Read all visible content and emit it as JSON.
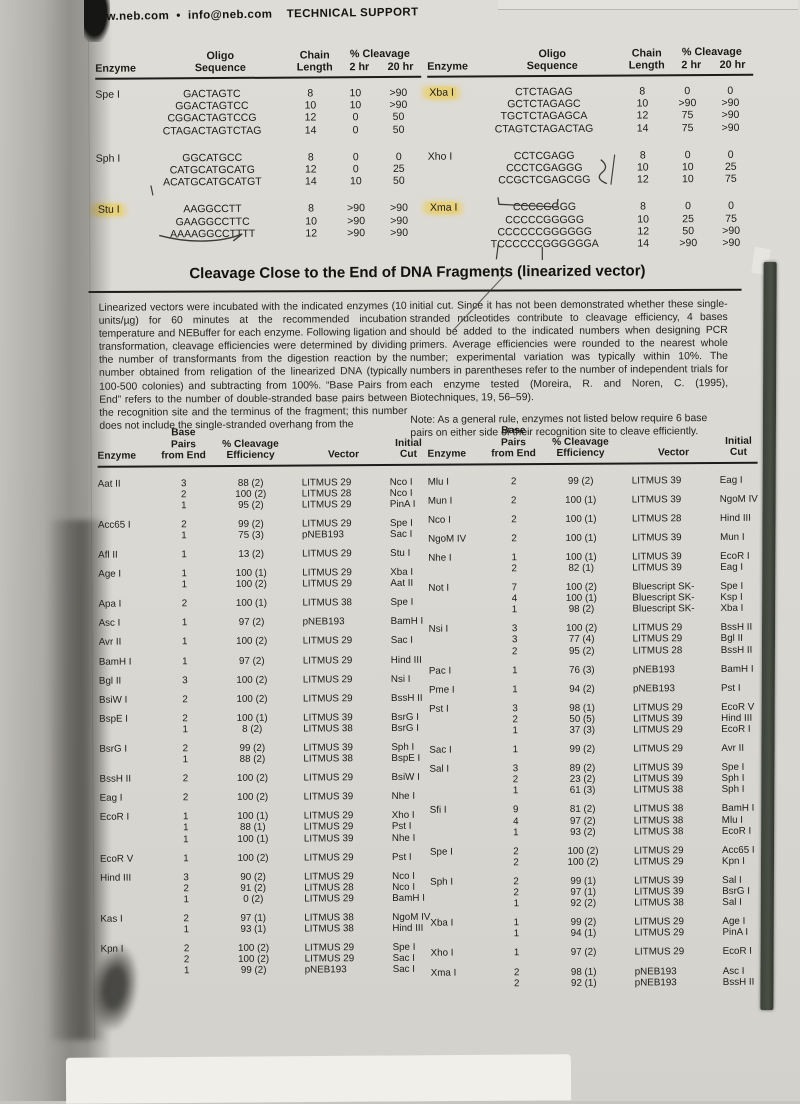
{
  "colors": {
    "highlight": "#e7d17c"
  },
  "header": {
    "text": "www.neb.com  •  info@neb.com    TECHNICAL SUPPORT"
  },
  "oligo_table": {
    "headers": {
      "enzyme": "Enzyme",
      "oligo_line1": "Oligo",
      "oligo_line2": "Sequence",
      "chain_line1": "Chain",
      "chain_line2": "Length",
      "cleavage": "% Cleavage",
      "t2": "2 hr",
      "t20": "20 hr"
    },
    "left_groups": [
      {
        "enzyme": "Spe I",
        "highlight": false,
        "rows": [
          [
            "GACTAGTC",
            "8",
            "10",
            ">90"
          ],
          [
            "GGACTAGTCC",
            "10",
            "10",
            ">90"
          ],
          [
            "CGGACTAGTCCG",
            "12",
            "0",
            "50"
          ],
          [
            "CTAGACTAGTCTAG",
            "14",
            "0",
            "50"
          ]
        ]
      },
      {
        "enzyme": "Sph I",
        "highlight": false,
        "rows": [
          [
            "GGCATGCC",
            "8",
            "0",
            "0"
          ],
          [
            "CATGCATGCATG",
            "12",
            "0",
            "25"
          ],
          [
            "ACATGCATGCATGT",
            "14",
            "10",
            "50"
          ]
        ]
      },
      {
        "enzyme": "Stu I",
        "highlight": true,
        "rows": [
          [
            "AAGGCCTT",
            "8",
            ">90",
            ">90"
          ],
          [
            "GAAGGCCTTC",
            "10",
            ">90",
            ">90"
          ],
          [
            "AAAAGGCCTTTT",
            "12",
            ">90",
            ">90"
          ]
        ]
      }
    ],
    "right_groups": [
      {
        "enzyme": "Xba I",
        "highlight": true,
        "rows": [
          [
            "CTCTAGAG",
            "8",
            "0",
            "0"
          ],
          [
            "GCTCTAGAGC",
            "10",
            ">90",
            ">90"
          ],
          [
            "TGCTCTAGAGCA",
            "12",
            "75",
            ">90"
          ],
          [
            "CTAGTCTAGACTAG",
            "14",
            "75",
            ">90"
          ]
        ]
      },
      {
        "enzyme": "Xho I",
        "highlight": false,
        "rows": [
          [
            "CCTCGAGG",
            "8",
            "0",
            "0"
          ],
          [
            "CCCTCGAGGG",
            "10",
            "10",
            "25"
          ],
          [
            "CCGCTCGAGCGG",
            "12",
            "10",
            "75"
          ]
        ]
      },
      {
        "enzyme": "Xma I",
        "highlight": true,
        "rows": [
          [
            "CCCCGGGG",
            "8",
            "0",
            "0"
          ],
          [
            "CCCCCGGGGG",
            "10",
            "25",
            "75"
          ],
          [
            "CCCCCCGGGGGG",
            "12",
            "50",
            ">90"
          ],
          [
            "TCCCCCCGGGGGGA",
            "14",
            ">90",
            ">90"
          ]
        ]
      }
    ]
  },
  "section": {
    "title": "Cleavage Close to the End of DNA Fragments (linearized vector)",
    "para_left": "Linearized vectors were incubated with the indicated enzymes (10 units/µg) for 60 minutes at the recommended incubation temperature and NEBuffer for each enzyme. Following ligation and transformation, cleavage efficiencies were determined by dividing the number of transformants from the digestion reaction by the number obtained from religation of the linearized DNA (typically 100-500 colonies) and subtracting from 100%. “Base Pairs from End” refers to the number of double-stranded base pairs between the recognition site and the terminus of the fragment; this number does not include the single-stranded overhang from the",
    "para_right": "initial cut. Since it has not been demonstrated whether these single-stranded nucleotides contribute to cleavage efficiency, 4 bases should be added to the indicated numbers when designing PCR primers. Average efficiencies were rounded to the nearest whole number; experimental variation was typically within 10%. The numbers in parentheses refer to the number of independent trials for each enzyme tested (Moreira, R. and Noren, C. (1995), Biotechniques, 19, 56–59).",
    "note": "Note: As a general rule, enzymes not listed below require 6 base pairs on either side of their recognition site to cleave efficiently."
  },
  "end_table": {
    "headers": {
      "enzyme": "Enzyme",
      "bp_line1": "Base Pairs",
      "bp_line2": "from End",
      "eff_line1": "% Cleavage",
      "eff_line2": "Efficiency",
      "vector": "Vector",
      "initial": "Initial Cut"
    },
    "left_groups": [
      {
        "enzyme": "Aat II",
        "rows": [
          [
            "3",
            "88 (2)",
            "LITMUS 29",
            "Nco I"
          ],
          [
            "2",
            "100 (2)",
            "LITMUS 28",
            "Nco I"
          ],
          [
            "1",
            "95 (2)",
            "LITMUS 29",
            "PinA I"
          ]
        ]
      },
      {
        "enzyme": "Acc65 I",
        "rows": [
          [
            "2",
            "99 (2)",
            "LITMUS 29",
            "Spe I"
          ],
          [
            "1",
            "75 (3)",
            "pNEB193",
            "Sac I"
          ]
        ]
      },
      {
        "enzyme": "Afl II",
        "rows": [
          [
            "1",
            "13 (2)",
            "LITMUS 29",
            "Stu I"
          ]
        ]
      },
      {
        "enzyme": "Age I",
        "rows": [
          [
            "1",
            "100 (1)",
            "LITMUS 29",
            "Xba I"
          ],
          [
            "1",
            "100 (2)",
            "LITMUS 29",
            "Aat II"
          ]
        ]
      },
      {
        "enzyme": "Apa I",
        "rows": [
          [
            "2",
            "100 (1)",
            "LITMUS 38",
            "Spe I"
          ]
        ]
      },
      {
        "enzyme": "Asc I",
        "rows": [
          [
            "1",
            "97 (2)",
            "pNEB193",
            "BamH I"
          ]
        ]
      },
      {
        "enzyme": "Avr II",
        "rows": [
          [
            "1",
            "100 (2)",
            "LITMUS 29",
            "Sac I"
          ]
        ]
      },
      {
        "enzyme": "BamH I",
        "rows": [
          [
            "1",
            "97 (2)",
            "LITMUS 29",
            "Hind III"
          ]
        ]
      },
      {
        "enzyme": "Bgl II",
        "rows": [
          [
            "3",
            "100 (2)",
            "LITMUS 29",
            "Nsi I"
          ]
        ]
      },
      {
        "enzyme": "BsiW I",
        "rows": [
          [
            "2",
            "100 (2)",
            "LITMUS 29",
            "BssH II"
          ]
        ]
      },
      {
        "enzyme": "BspE I",
        "rows": [
          [
            "2",
            "100 (1)",
            "LITMUS 39",
            "BsrG I"
          ],
          [
            "1",
            "8 (2)",
            "LITMUS 38",
            "BsrG I"
          ]
        ]
      },
      {
        "enzyme": "BsrG I",
        "rows": [
          [
            "2",
            "99 (2)",
            "LITMUS 39",
            "Sph I"
          ],
          [
            "1",
            "88 (2)",
            "LITMUS 38",
            "BspE I"
          ]
        ]
      },
      {
        "enzyme": "BssH II",
        "rows": [
          [
            "2",
            "100 (2)",
            "LITMUS 29",
            "BsiW I"
          ]
        ]
      },
      {
        "enzyme": "Eag I",
        "rows": [
          [
            "2",
            "100 (2)",
            "LITMUS 39",
            "Nhe I"
          ]
        ]
      },
      {
        "enzyme": "EcoR I",
        "rows": [
          [
            "1",
            "100 (1)",
            "LITMUS 29",
            "Xho I"
          ],
          [
            "1",
            "88 (1)",
            "LITMUS 29",
            "Pst I"
          ],
          [
            "1",
            "100 (1)",
            "LITMUS 39",
            "Nhe I"
          ]
        ]
      },
      {
        "enzyme": "EcoR V",
        "rows": [
          [
            "1",
            "100 (2)",
            "LITMUS 29",
            "Pst I"
          ]
        ]
      },
      {
        "enzyme": "Hind III",
        "rows": [
          [
            "3",
            "90 (2)",
            "LITMUS 29",
            "Nco I"
          ],
          [
            "2",
            "91 (2)",
            "LITMUS 28",
            "Nco I"
          ],
          [
            "1",
            "0 (2)",
            "LITMUS 29",
            "BamH I"
          ]
        ]
      },
      {
        "enzyme": "Kas I",
        "rows": [
          [
            "2",
            "97 (1)",
            "LITMUS 38",
            "NgoM IV"
          ],
          [
            "1",
            "93 (1)",
            "LITMUS 38",
            "Hind III"
          ]
        ]
      },
      {
        "enzyme": "Kpn I",
        "rows": [
          [
            "2",
            "100 (2)",
            "LITMUS 29",
            "Spe I"
          ],
          [
            "2",
            "100 (2)",
            "LITMUS 29",
            "Sac I"
          ],
          [
            "1",
            "99 (2)",
            "pNEB193",
            "Sac I"
          ]
        ]
      }
    ],
    "right_groups": [
      {
        "enzyme": "Mlu I",
        "rows": [
          [
            "2",
            "99 (2)",
            "LITMUS 39",
            "Eag I"
          ]
        ]
      },
      {
        "enzyme": "Mun I",
        "rows": [
          [
            "2",
            "100 (1)",
            "LITMUS 39",
            "NgoM IV"
          ]
        ]
      },
      {
        "enzyme": "Nco I",
        "rows": [
          [
            "2",
            "100 (1)",
            "LITMUS 28",
            "Hind III"
          ]
        ]
      },
      {
        "enzyme": "NgoM IV",
        "rows": [
          [
            "2",
            "100 (1)",
            "LITMUS 39",
            "Mun I"
          ]
        ]
      },
      {
        "enzyme": "Nhe I",
        "rows": [
          [
            "1",
            "100 (1)",
            "LITMUS 39",
            "EcoR I"
          ],
          [
            "2",
            "82 (1)",
            "LITMUS 39",
            "Eag I"
          ]
        ]
      },
      {
        "enzyme": "Not I",
        "rows": [
          [
            "7",
            "100 (2)",
            "Bluescript SK-",
            "Spe I"
          ],
          [
            "4",
            "100 (1)",
            "Bluescript SK-",
            "Ksp I"
          ],
          [
            "1",
            "98 (2)",
            "Bluescript SK-",
            "Xba I"
          ]
        ]
      },
      {
        "enzyme": "Nsi I",
        "rows": [
          [
            "3",
            "100 (2)",
            "LITMUS 29",
            "BssH II"
          ],
          [
            "3",
            "77 (4)",
            "LITMUS 29",
            "Bgl II"
          ],
          [
            "2",
            "95 (2)",
            "LITMUS 28",
            "BssH II"
          ]
        ]
      },
      {
        "enzyme": "Pac I",
        "rows": [
          [
            "1",
            "76 (3)",
            "pNEB193",
            "BamH I"
          ]
        ]
      },
      {
        "enzyme": "Pme I",
        "rows": [
          [
            "1",
            "94 (2)",
            "pNEB193",
            "Pst I"
          ]
        ]
      },
      {
        "enzyme": "Pst I",
        "rows": [
          [
            "3",
            "98 (1)",
            "LITMUS 29",
            "EcoR V"
          ],
          [
            "2",
            "50 (5)",
            "LITMUS 39",
            "Hind III"
          ],
          [
            "1",
            "37 (3)",
            "LITMUS 29",
            "EcoR I"
          ]
        ]
      },
      {
        "enzyme": "Sac I",
        "rows": [
          [
            "1",
            "99 (2)",
            "LITMUS 29",
            "Avr II"
          ]
        ]
      },
      {
        "enzyme": "Sal I",
        "rows": [
          [
            "3",
            "89 (2)",
            "LITMUS 39",
            "Spe I"
          ],
          [
            "2",
            "23 (2)",
            "LITMUS 39",
            "Sph I"
          ],
          [
            "1",
            "61 (3)",
            "LITMUS 38",
            "Sph I"
          ]
        ]
      },
      {
        "enzyme": "Sfi I",
        "rows": [
          [
            "9",
            "81 (2)",
            "LITMUS 38",
            "BamH I"
          ],
          [
            "4",
            "97 (2)",
            "LITMUS 38",
            "Mlu I"
          ],
          [
            "1",
            "93 (2)",
            "LITMUS 38",
            "EcoR I"
          ]
        ]
      },
      {
        "enzyme": "Spe I",
        "rows": [
          [
            "2",
            "100 (2)",
            "LITMUS 29",
            "Acc65 I"
          ],
          [
            "2",
            "100 (2)",
            "LITMUS 29",
            "Kpn I"
          ]
        ]
      },
      {
        "enzyme": "Sph I",
        "rows": [
          [
            "2",
            "99 (1)",
            "LITMUS 39",
            "Sal I"
          ],
          [
            "2",
            "97 (1)",
            "LITMUS 39",
            "BsrG I"
          ],
          [
            "1",
            "92 (2)",
            "LITMUS 38",
            "Sal I"
          ]
        ]
      },
      {
        "enzyme": "Xba I",
        "rows": [
          [
            "1",
            "99 (2)",
            "LITMUS 29",
            "Age I"
          ],
          [
            "1",
            "94 (1)",
            "LITMUS 29",
            "PinA I"
          ]
        ]
      },
      {
        "enzyme": "Xho I",
        "rows": [
          [
            "1",
            "97 (2)",
            "LITMUS 29",
            "EcoR I"
          ]
        ]
      },
      {
        "enzyme": "Xma I",
        "rows": [
          [
            "2",
            "98 (1)",
            "pNEB193",
            "Asc I"
          ],
          [
            "2",
            "92 (1)",
            "pNEB193",
            "BssH II"
          ]
        ]
      }
    ]
  }
}
